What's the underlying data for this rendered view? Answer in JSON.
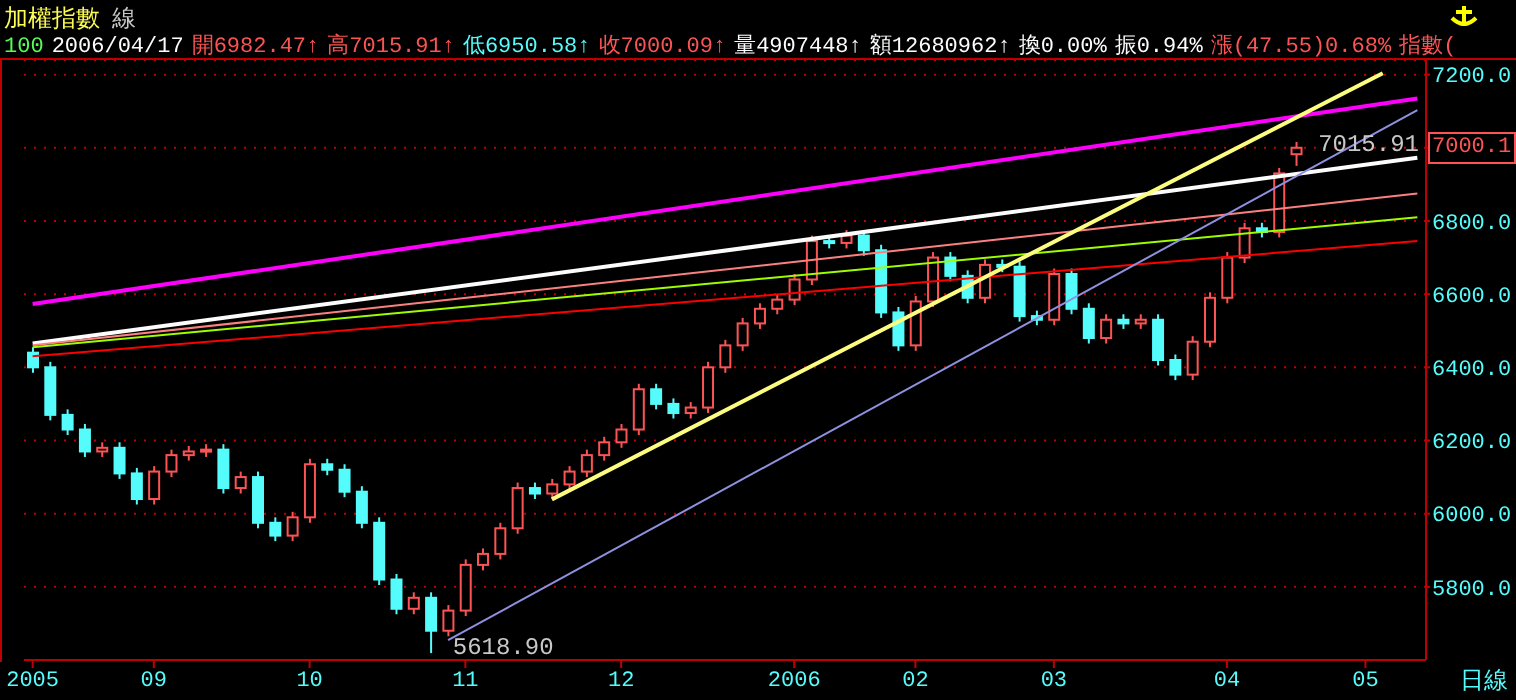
{
  "chart_data": {
    "type": "candlestick",
    "title": "加權指數",
    "subtitle": "線",
    "categories": [
      "2005",
      null,
      null,
      null,
      null,
      null,
      null,
      "09",
      null,
      null,
      null,
      null,
      null,
      null,
      null,
      null,
      "10",
      null,
      null,
      null,
      null,
      null,
      null,
      null,
      null,
      "11",
      null,
      null,
      null,
      null,
      null,
      null,
      null,
      null,
      "12",
      null,
      null,
      null,
      null,
      null,
      null,
      null,
      null,
      null,
      "2006",
      null,
      null,
      null,
      null,
      null,
      null,
      "02",
      null,
      null,
      null,
      null,
      null,
      null,
      null,
      "03",
      null,
      null,
      null,
      null,
      null,
      null,
      null,
      null,
      null,
      "04",
      null,
      null,
      null,
      null,
      null,
      null,
      null,
      "05",
      null,
      null,
      null
    ],
    "ohlc": [
      [
        6440,
        6455,
        6385,
        6400
      ],
      [
        6400,
        6415,
        6255,
        6270
      ],
      [
        6270,
        6285,
        6215,
        6230
      ],
      [
        6230,
        6245,
        6155,
        6170
      ],
      [
        6170,
        6195,
        6155,
        6180
      ],
      [
        6180,
        6195,
        6095,
        6110
      ],
      [
        6110,
        6125,
        6025,
        6040
      ],
      [
        6040,
        6130,
        6025,
        6115
      ],
      [
        6115,
        6175,
        6100,
        6160
      ],
      [
        6160,
        6185,
        6145,
        6170
      ],
      [
        6170,
        6190,
        6155,
        6175
      ],
      [
        6175,
        6190,
        6055,
        6070
      ],
      [
        6070,
        6115,
        6055,
        6100
      ],
      [
        6100,
        6115,
        5960,
        5975
      ],
      [
        5975,
        5990,
        5925,
        5940
      ],
      [
        5940,
        6005,
        5925,
        5990
      ],
      [
        5990,
        6150,
        5975,
        6135
      ],
      [
        6135,
        6150,
        6105,
        6120
      ],
      [
        6120,
        6135,
        6045,
        6060
      ],
      [
        6060,
        6075,
        5960,
        5975
      ],
      [
        5975,
        5990,
        5805,
        5820
      ],
      [
        5820,
        5835,
        5725,
        5740
      ],
      [
        5740,
        5785,
        5725,
        5770
      ],
      [
        5770,
        5785,
        5618.9,
        5680
      ],
      [
        5680,
        5750,
        5665,
        5735
      ],
      [
        5735,
        5875,
        5720,
        5860
      ],
      [
        5860,
        5905,
        5845,
        5890
      ],
      [
        5890,
        5975,
        5875,
        5960
      ],
      [
        5960,
        6085,
        5945,
        6070
      ],
      [
        6070,
        6085,
        6040,
        6055
      ],
      [
        6055,
        6095,
        6040,
        6080
      ],
      [
        6080,
        6130,
        6065,
        6115
      ],
      [
        6115,
        6175,
        6100,
        6160
      ],
      [
        6160,
        6210,
        6145,
        6195
      ],
      [
        6195,
        6245,
        6180,
        6230
      ],
      [
        6230,
        6355,
        6215,
        6340
      ],
      [
        6340,
        6355,
        6285,
        6300
      ],
      [
        6300,
        6315,
        6260,
        6275
      ],
      [
        6275,
        6305,
        6260,
        6290
      ],
      [
        6290,
        6415,
        6275,
        6400
      ],
      [
        6400,
        6475,
        6385,
        6460
      ],
      [
        6460,
        6535,
        6445,
        6520
      ],
      [
        6520,
        6575,
        6505,
        6560
      ],
      [
        6560,
        6600,
        6545,
        6585
      ],
      [
        6585,
        6655,
        6570,
        6640
      ],
      [
        6640,
        6760,
        6625,
        6745
      ],
      [
        6745,
        6760,
        6725,
        6740
      ],
      [
        6740,
        6775,
        6725,
        6760
      ],
      [
        6760,
        6775,
        6705,
        6720
      ],
      [
        6720,
        6735,
        6535,
        6550
      ],
      [
        6550,
        6565,
        6445,
        6460
      ],
      [
        6460,
        6595,
        6445,
        6580
      ],
      [
        6580,
        6715,
        6565,
        6700
      ],
      [
        6700,
        6715,
        6635,
        6650
      ],
      [
        6650,
        6665,
        6575,
        6590
      ],
      [
        6590,
        6695,
        6575,
        6680
      ],
      [
        6680,
        6695,
        6660,
        6675
      ],
      [
        6675,
        6690,
        6525,
        6540
      ],
      [
        6540,
        6555,
        6515,
        6530
      ],
      [
        6530,
        6670,
        6515,
        6655
      ],
      [
        6655,
        6670,
        6545,
        6560
      ],
      [
        6560,
        6575,
        6465,
        6480
      ],
      [
        6480,
        6545,
        6465,
        6530
      ],
      [
        6530,
        6545,
        6505,
        6520
      ],
      [
        6520,
        6545,
        6505,
        6530
      ],
      [
        6530,
        6545,
        6405,
        6420
      ],
      [
        6420,
        6435,
        6365,
        6380
      ],
      [
        6380,
        6485,
        6365,
        6470
      ],
      [
        6470,
        6605,
        6455,
        6590
      ],
      [
        6590,
        6715,
        6575,
        6700
      ],
      [
        6700,
        6795,
        6685,
        6780
      ],
      [
        6780,
        6795,
        6755,
        6770
      ],
      [
        6770,
        6945,
        6755,
        6930
      ],
      [
        6982.47,
        7015.91,
        6950.58,
        7000.09
      ],
      null,
      null,
      null,
      null,
      null,
      null,
      null
    ],
    "colors": [
      "#54fcfc",
      "#54fcfc",
      "#54fcfc",
      "#54fcfc",
      "#fc5454",
      "#54fcfc",
      "#54fcfc",
      "#fc5454",
      "#fc5454",
      "#fc5454",
      "#fc5454",
      "#54fcfc",
      "#fc5454",
      "#54fcfc",
      "#54fcfc",
      "#fc5454",
      "#fc5454",
      "#54fcfc",
      "#54fcfc",
      "#54fcfc",
      "#54fcfc",
      "#54fcfc",
      "#fc5454",
      "#54fcfc",
      "#fc5454",
      "#fc5454",
      "#fc5454",
      "#fc5454",
      "#fc5454",
      "#54fcfc",
      "#fc5454",
      "#fc5454",
      "#fc5454",
      "#fc5454",
      "#fc5454",
      "#fc5454",
      "#54fcfc",
      "#54fcfc",
      "#fc5454",
      "#fc5454",
      "#fc5454",
      "#fc5454",
      "#fc5454",
      "#fc5454",
      "#fc5454",
      "#fc5454",
      "#54fcfc",
      "#fc5454",
      "#54fcfc",
      "#54fcfc",
      "#54fcfc",
      "#fc5454",
      "#fc5454",
      "#54fcfc",
      "#54fcfc",
      "#fc5454",
      "#54fcfc",
      "#54fcfc",
      "#54fcfc",
      "#fc5454",
      "#54fcfc",
      "#54fcfc",
      "#fc5454",
      "#54fcfc",
      "#fc5454",
      "#54fcfc",
      "#54fcfc",
      "#fc5454",
      "#fc5454",
      "#fc5454",
      "#fc5454",
      "#54fcfc",
      "#fc5454",
      "#fc5454",
      null,
      null,
      null,
      null,
      null,
      null,
      null
    ],
    "series": [
      {
        "type": "line",
        "color": "#fc00fc",
        "values": [
          6573,
          null,
          null,
          null,
          null,
          null,
          null,
          null,
          null,
          null,
          null,
          null,
          null,
          null,
          null,
          null,
          null,
          null,
          null,
          null,
          null,
          null,
          null,
          null,
          null,
          null,
          null,
          null,
          null,
          null,
          null,
          null,
          null,
          null,
          null,
          null,
          null,
          null,
          null,
          null,
          null,
          null,
          null,
          null,
          null,
          null,
          null,
          null,
          null,
          null,
          null,
          null,
          null,
          null,
          null,
          null,
          null,
          null,
          null,
          null,
          null,
          null,
          null,
          null,
          null,
          null,
          null,
          null,
          null,
          null,
          null,
          null,
          null,
          null,
          null,
          null,
          null,
          null,
          null,
          null,
          7135
        ]
      },
      {
        "type": "line",
        "color": "#fcfcfc",
        "values": [
          6465,
          null,
          null,
          null,
          null,
          null,
          null,
          null,
          null,
          null,
          null,
          null,
          null,
          null,
          null,
          null,
          null,
          null,
          null,
          null,
          null,
          null,
          null,
          null,
          null,
          null,
          null,
          null,
          null,
          null,
          null,
          null,
          null,
          null,
          null,
          null,
          null,
          null,
          null,
          null,
          null,
          null,
          null,
          null,
          null,
          null,
          null,
          null,
          null,
          null,
          null,
          null,
          null,
          null,
          null,
          null,
          null,
          null,
          null,
          null,
          null,
          null,
          null,
          null,
          null,
          null,
          null,
          null,
          null,
          null,
          null,
          null,
          null,
          null,
          null,
          null,
          null,
          null,
          null,
          null,
          6973
        ]
      },
      {
        "type": "line",
        "color": "#fc8080",
        "values": [
          6460,
          null,
          null,
          null,
          null,
          null,
          null,
          null,
          null,
          null,
          null,
          null,
          null,
          null,
          null,
          null,
          null,
          null,
          null,
          null,
          null,
          null,
          null,
          null,
          null,
          null,
          null,
          null,
          null,
          null,
          null,
          null,
          null,
          null,
          null,
          null,
          null,
          null,
          null,
          null,
          null,
          null,
          null,
          null,
          null,
          null,
          null,
          null,
          null,
          null,
          null,
          null,
          null,
          null,
          null,
          null,
          null,
          null,
          null,
          null,
          null,
          null,
          null,
          null,
          null,
          null,
          null,
          null,
          null,
          null,
          null,
          null,
          null,
          null,
          null,
          null,
          null,
          null,
          null,
          null,
          6875
        ]
      },
      {
        "type": "line",
        "color": "#a0fc00",
        "values": [
          6455,
          null,
          null,
          null,
          null,
          null,
          null,
          null,
          null,
          null,
          null,
          null,
          null,
          null,
          null,
          null,
          null,
          null,
          null,
          null,
          null,
          null,
          null,
          null,
          null,
          null,
          null,
          null,
          null,
          null,
          null,
          null,
          null,
          null,
          null,
          null,
          null,
          null,
          null,
          null,
          null,
          null,
          null,
          null,
          null,
          null,
          null,
          null,
          null,
          null,
          null,
          null,
          null,
          null,
          null,
          null,
          null,
          null,
          null,
          null,
          null,
          null,
          null,
          null,
          null,
          null,
          null,
          null,
          null,
          null,
          null,
          null,
          null,
          null,
          null,
          null,
          null,
          null,
          null,
          null,
          6810
        ]
      },
      {
        "type": "line",
        "color": "#fc0000",
        "values": [
          6430,
          null,
          null,
          null,
          null,
          null,
          null,
          null,
          null,
          null,
          null,
          null,
          null,
          null,
          null,
          null,
          null,
          null,
          null,
          null,
          null,
          null,
          null,
          null,
          null,
          null,
          null,
          null,
          null,
          null,
          null,
          null,
          null,
          null,
          null,
          null,
          null,
          null,
          null,
          null,
          null,
          null,
          null,
          null,
          null,
          null,
          null,
          null,
          null,
          null,
          null,
          null,
          null,
          null,
          null,
          null,
          null,
          null,
          null,
          null,
          null,
          null,
          null,
          null,
          null,
          null,
          null,
          null,
          null,
          null,
          null,
          null,
          null,
          null,
          null,
          null,
          null,
          null,
          null,
          null,
          6745
        ]
      },
      {
        "type": "line",
        "color": "#fcfc80",
        "values": [
          null,
          null,
          null,
          null,
          null,
          null,
          null,
          null,
          null,
          null,
          null,
          null,
          null,
          null,
          null,
          null,
          null,
          null,
          null,
          null,
          null,
          null,
          null,
          null,
          null,
          null,
          null,
          null,
          null,
          null,
          6039,
          null,
          null,
          null,
          null,
          null,
          null,
          null,
          null,
          null,
          null,
          null,
          null,
          null,
          null,
          null,
          null,
          null,
          null,
          null,
          null,
          null,
          null,
          null,
          null,
          null,
          null,
          null,
          null,
          null,
          null,
          null,
          null,
          null,
          null,
          null,
          null,
          null,
          null,
          null,
          null,
          null,
          null,
          null,
          null,
          null,
          null,
          null,
          7204,
          null,
          null
        ]
      },
      {
        "type": "line",
        "color": "#9090e0",
        "values": [
          null,
          null,
          null,
          null,
          null,
          null,
          null,
          null,
          null,
          null,
          null,
          null,
          null,
          null,
          null,
          null,
          null,
          null,
          null,
          null,
          null,
          null,
          null,
          null,
          5654,
          null,
          null,
          null,
          null,
          null,
          null,
          null,
          null,
          null,
          null,
          null,
          null,
          null,
          null,
          null,
          null,
          null,
          null,
          null,
          null,
          null,
          null,
          null,
          null,
          null,
          null,
          null,
          null,
          null,
          null,
          null,
          null,
          null,
          null,
          null,
          null,
          null,
          null,
          null,
          null,
          null,
          null,
          null,
          null,
          null,
          null,
          null,
          null,
          null,
          null,
          null,
          null,
          null,
          null,
          null,
          7103
        ]
      }
    ],
    "ylim": [
      5600,
      7240
    ],
    "yticks": [
      {
        "value": 5800,
        "label": "5800.0"
      },
      {
        "value": 6000,
        "label": "6000.0"
      },
      {
        "value": 6200,
        "label": "6200.0"
      },
      {
        "value": 6400,
        "label": "6400.0"
      },
      {
        "value": 6600,
        "label": "6600.0"
      },
      {
        "value": 6800,
        "label": "6800.0"
      },
      {
        "value": 7000,
        "label": null
      },
      {
        "value": 7200,
        "label": "7200.0"
      }
    ],
    "grid": "y",
    "annotations": [
      "100",
      "2006/04/17",
      "開6982.47↑",
      "高7015.91↑",
      "低6950.58↑",
      "收7000.09↑",
      "量4907448↑",
      "額12680962↑",
      "換0.00%",
      "振0.94%",
      "漲(47.55)0.68%",
      "指數(",
      "日線",
      "7015.91",
      "5618.90",
      "7000.1"
    ]
  }
}
